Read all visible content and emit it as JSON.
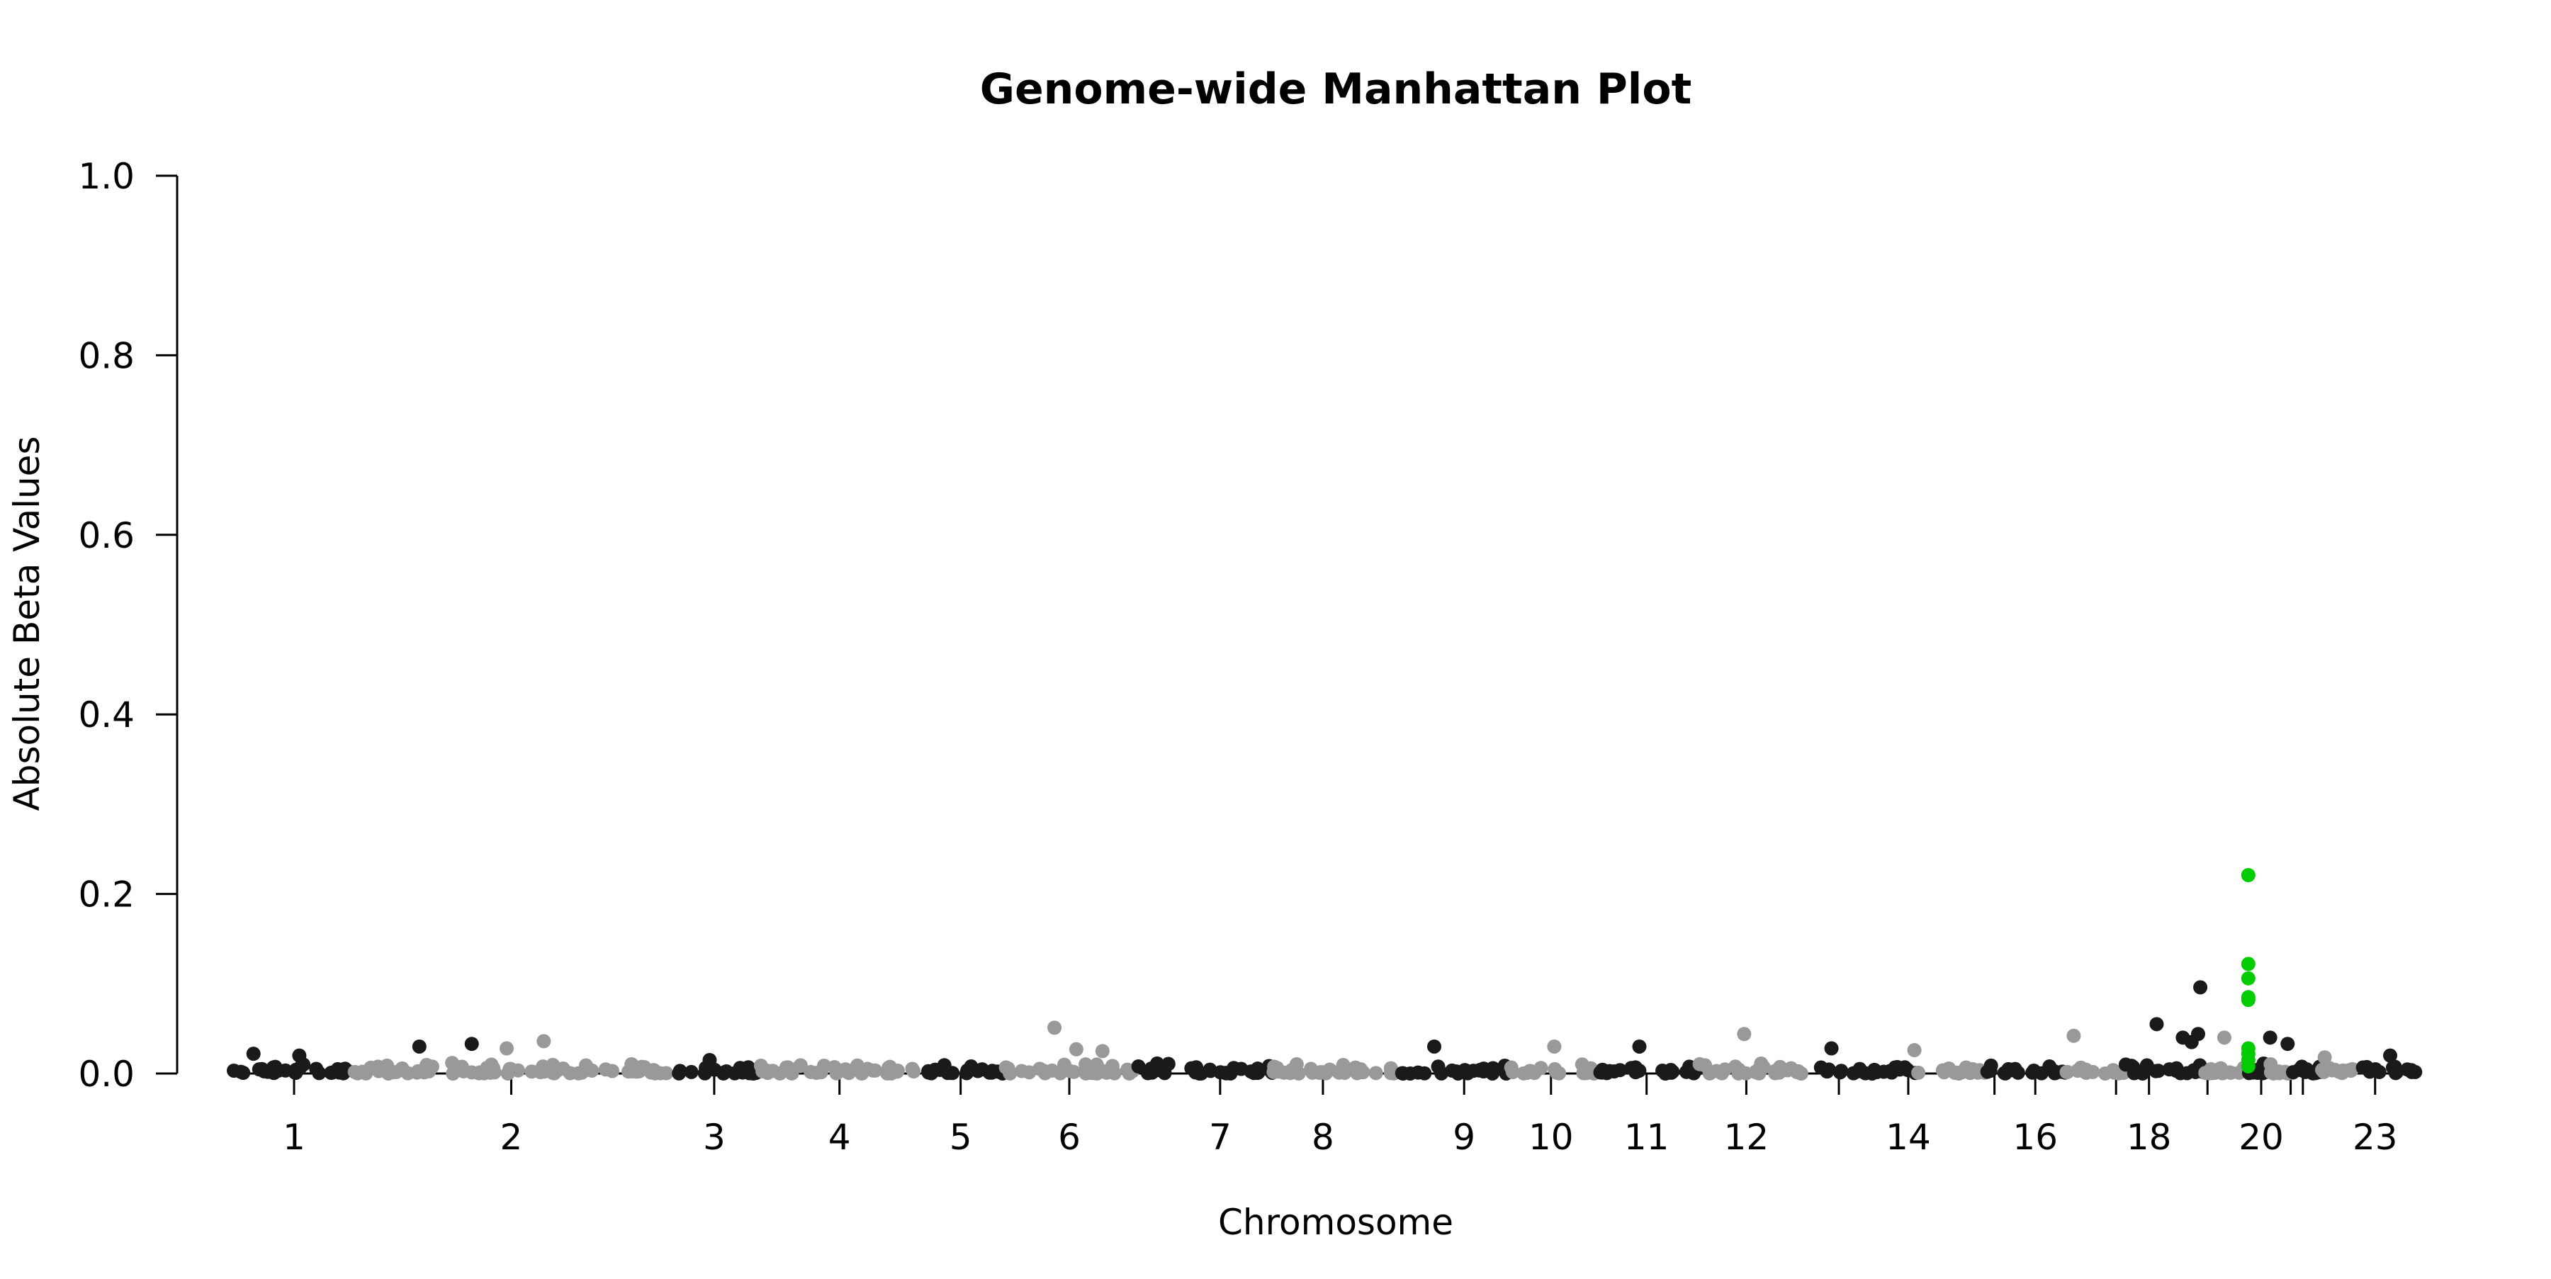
{
  "chart_data": {
    "type": "scatter",
    "title": "Genome-wide Manhattan Plot",
    "xlabel": "Chromosome",
    "ylabel": "Absolute Beta Values",
    "ylim": [
      0,
      1
    ],
    "yticks": [
      "0.0",
      "0.2",
      "0.4",
      "0.6",
      "0.8",
      "1.0"
    ],
    "ytick_values": [
      0,
      0.2,
      0.4,
      0.6,
      0.8,
      1.0
    ],
    "grid": false,
    "legend": "none",
    "colors": {
      "odd_chromosome": "#1a1a1a",
      "even_chromosome": "#999999",
      "highlight": "#00cc00"
    },
    "chromosomes": [
      {
        "tick": "1",
        "label": "1",
        "pos": 0.0276,
        "start": 0.0,
        "end": 0.0552
      },
      {
        "tick": "2",
        "label": "2",
        "pos": 0.1271,
        "start": 0.0552,
        "end": 0.199
      },
      {
        "tick": "3",
        "label": "3",
        "pos": 0.2201,
        "start": 0.199,
        "end": 0.2414
      },
      {
        "tick": "4",
        "label": "4",
        "pos": 0.2775,
        "start": 0.2414,
        "end": 0.3136
      },
      {
        "tick": "5",
        "label": "5",
        "pos": 0.333,
        "start": 0.3136,
        "end": 0.3524
      },
      {
        "tick": "6",
        "label": "6",
        "pos": 0.3828,
        "start": 0.3524,
        "end": 0.4132
      },
      {
        "tick": "7",
        "label": "7",
        "pos": 0.4519,
        "start": 0.4132,
        "end": 0.476
      },
      {
        "tick": "8",
        "label": "8",
        "pos": 0.499,
        "start": 0.476,
        "end": 0.535
      },
      {
        "tick": "9",
        "label": "9",
        "pos": 0.5637,
        "start": 0.535,
        "end": 0.5839
      },
      {
        "tick": "10",
        "label": "10",
        "pos": 0.6035,
        "start": 0.5839,
        "end": 0.6252
      },
      {
        "tick": "11",
        "label": "11",
        "pos": 0.6473,
        "start": 0.6252,
        "end": 0.6709
      },
      {
        "tick": "12",
        "label": "12",
        "pos": 0.693,
        "start": 0.6709,
        "end": 0.724
      },
      {
        "tick": "13",
        "label": "",
        "pos": 0.7354,
        "start": 0.724,
        "end": 0.7712
      },
      {
        "tick": "14",
        "label": "14",
        "pos": 0.7672,
        "start": 0.7712,
        "end": 0.8034
      },
      {
        "tick": "15",
        "label": "",
        "pos": 0.8067,
        "start": 0.8034,
        "end": 0.8393
      },
      {
        "tick": "16",
        "label": "16",
        "pos": 0.8254,
        "start": 0.8393,
        "end": 0.8665
      },
      {
        "tick": "17",
        "label": "",
        "pos": 0.8624,
        "start": 0.8665,
        "end": 0.9028
      },
      {
        "tick": "18",
        "label": "18",
        "pos": 0.8775,
        "start": 0.9028,
        "end": 0.9224
      },
      {
        "tick": "19",
        "label": "",
        "pos": 0.9043,
        "start": 0.9224,
        "end": 0.9311
      },
      {
        "tick": "20",
        "label": "20",
        "pos": 0.9289,
        "start": 0.9311,
        "end": 0.9435
      },
      {
        "tick": "21",
        "label": "",
        "pos": 0.9424,
        "start": 0.9435,
        "end": 0.9562
      },
      {
        "tick": "22",
        "label": "",
        "pos": 0.948,
        "start": 0.9562,
        "end": 0.9725
      },
      {
        "tick": "23",
        "label": "23",
        "pos": 0.9811,
        "start": 0.9725,
        "end": 1.0
      }
    ],
    "notable_points": [
      {
        "chr": "1",
        "x": 0.03,
        "y": 0.02,
        "group": "odd"
      },
      {
        "chr": "1",
        "x": 0.009,
        "y": 0.022,
        "group": "odd"
      },
      {
        "chr": "2",
        "x": 0.085,
        "y": 0.03,
        "group": "odd"
      },
      {
        "chr": "2",
        "x": 0.109,
        "y": 0.033,
        "group": "odd"
      },
      {
        "chr": "2",
        "x": 0.142,
        "y": 0.036,
        "group": "even"
      },
      {
        "chr": "2",
        "x": 0.125,
        "y": 0.028,
        "group": "even"
      },
      {
        "chr": "3",
        "x": 0.218,
        "y": 0.015,
        "group": "odd"
      },
      {
        "chr": "6",
        "x": 0.376,
        "y": 0.051,
        "group": "even"
      },
      {
        "chr": "6",
        "x": 0.386,
        "y": 0.027,
        "group": "even"
      },
      {
        "chr": "6",
        "x": 0.398,
        "y": 0.025,
        "group": "even"
      },
      {
        "chr": "9",
        "x": 0.55,
        "y": 0.03,
        "group": "odd"
      },
      {
        "chr": "10",
        "x": 0.605,
        "y": 0.03,
        "group": "even"
      },
      {
        "chr": "11",
        "x": 0.644,
        "y": 0.03,
        "group": "odd"
      },
      {
        "chr": "12",
        "x": 0.692,
        "y": 0.044,
        "group": "even"
      },
      {
        "chr": "13",
        "x": 0.732,
        "y": 0.028,
        "group": "odd"
      },
      {
        "chr": "14",
        "x": 0.77,
        "y": 0.026,
        "group": "even"
      },
      {
        "chr": "16",
        "x": 0.843,
        "y": 0.042,
        "group": "even"
      },
      {
        "chr": "17",
        "x": 0.881,
        "y": 0.055,
        "group": "odd"
      },
      {
        "chr": "17",
        "x": 0.893,
        "y": 0.04,
        "group": "odd"
      },
      {
        "chr": "17",
        "x": 0.897,
        "y": 0.035,
        "group": "odd"
      },
      {
        "chr": "17",
        "x": 0.901,
        "y": 0.096,
        "group": "odd"
      },
      {
        "chr": "17",
        "x": 0.9,
        "y": 0.044,
        "group": "odd"
      },
      {
        "chr": "18",
        "x": 0.912,
        "y": 0.04,
        "group": "even"
      },
      {
        "chr": "19",
        "x": 0.933,
        "y": 0.04,
        "group": "odd"
      },
      {
        "chr": "19",
        "x": 0.941,
        "y": 0.033,
        "group": "odd"
      },
      {
        "chr": "20",
        "x": 0.958,
        "y": 0.018,
        "group": "even"
      },
      {
        "chr": "23",
        "x": 0.988,
        "y": 0.02,
        "group": "odd"
      }
    ],
    "highlighted_points": [
      {
        "chr": "18",
        "x": 0.923,
        "y": 0.221
      },
      {
        "chr": "18",
        "x": 0.923,
        "y": 0.122
      },
      {
        "chr": "18",
        "x": 0.923,
        "y": 0.106
      },
      {
        "chr": "18",
        "x": 0.923,
        "y": 0.085
      },
      {
        "chr": "18",
        "x": 0.923,
        "y": 0.082
      },
      {
        "chr": "18",
        "x": 0.923,
        "y": 0.028
      },
      {
        "chr": "18",
        "x": 0.923,
        "y": 0.022
      },
      {
        "chr": "18",
        "x": 0.923,
        "y": 0.015
      },
      {
        "chr": "18",
        "x": 0.923,
        "y": 0.008
      }
    ],
    "background_baseline_y_max": 0.012
  }
}
